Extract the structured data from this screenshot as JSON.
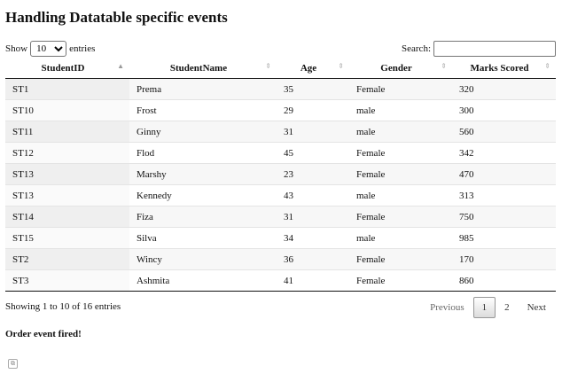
{
  "page": {
    "title": "Handling Datatable specific events"
  },
  "length": {
    "show_label": "Show",
    "selected": "10",
    "options": [
      "10",
      "25",
      "50",
      "100"
    ],
    "entries_label": "entries"
  },
  "search": {
    "label": "Search:",
    "value": "",
    "placeholder": ""
  },
  "table": {
    "columns": [
      {
        "label": "StudentID",
        "sort": "asc"
      },
      {
        "label": "StudentName",
        "sort": "none"
      },
      {
        "label": "Age",
        "sort": "none"
      },
      {
        "label": "Gender",
        "sort": "none"
      },
      {
        "label": "Marks Scored",
        "sort": "none"
      }
    ],
    "rows": [
      [
        "ST1",
        "Prema",
        "35",
        "Female",
        "320"
      ],
      [
        "ST10",
        "Frost",
        "29",
        "male",
        "300"
      ],
      [
        "ST11",
        "Ginny",
        "31",
        "male",
        "560"
      ],
      [
        "ST12",
        "Flod",
        "45",
        "Female",
        "342"
      ],
      [
        "ST13",
        "Marshy",
        "23",
        "Female",
        "470"
      ],
      [
        "ST13",
        "Kennedy",
        "43",
        "male",
        "313"
      ],
      [
        "ST14",
        "Fiza",
        "31",
        "Female",
        "750"
      ],
      [
        "ST15",
        "Silva",
        "34",
        "male",
        "985"
      ],
      [
        "ST2",
        "Wincy",
        "36",
        "Female",
        "170"
      ],
      [
        "ST3",
        "Ashmita",
        "41",
        "Female",
        "860"
      ]
    ]
  },
  "info": "Showing 1 to 10 of 16 entries",
  "pager": {
    "previous": "Previous",
    "pages": [
      "1",
      "2"
    ],
    "current": "1",
    "next": "Next"
  },
  "event_message": "Order event fired!",
  "icons": {
    "sort_asc": "sort-asc-icon",
    "sort_both": "sort-both-icon",
    "corner": "copy-icon"
  }
}
